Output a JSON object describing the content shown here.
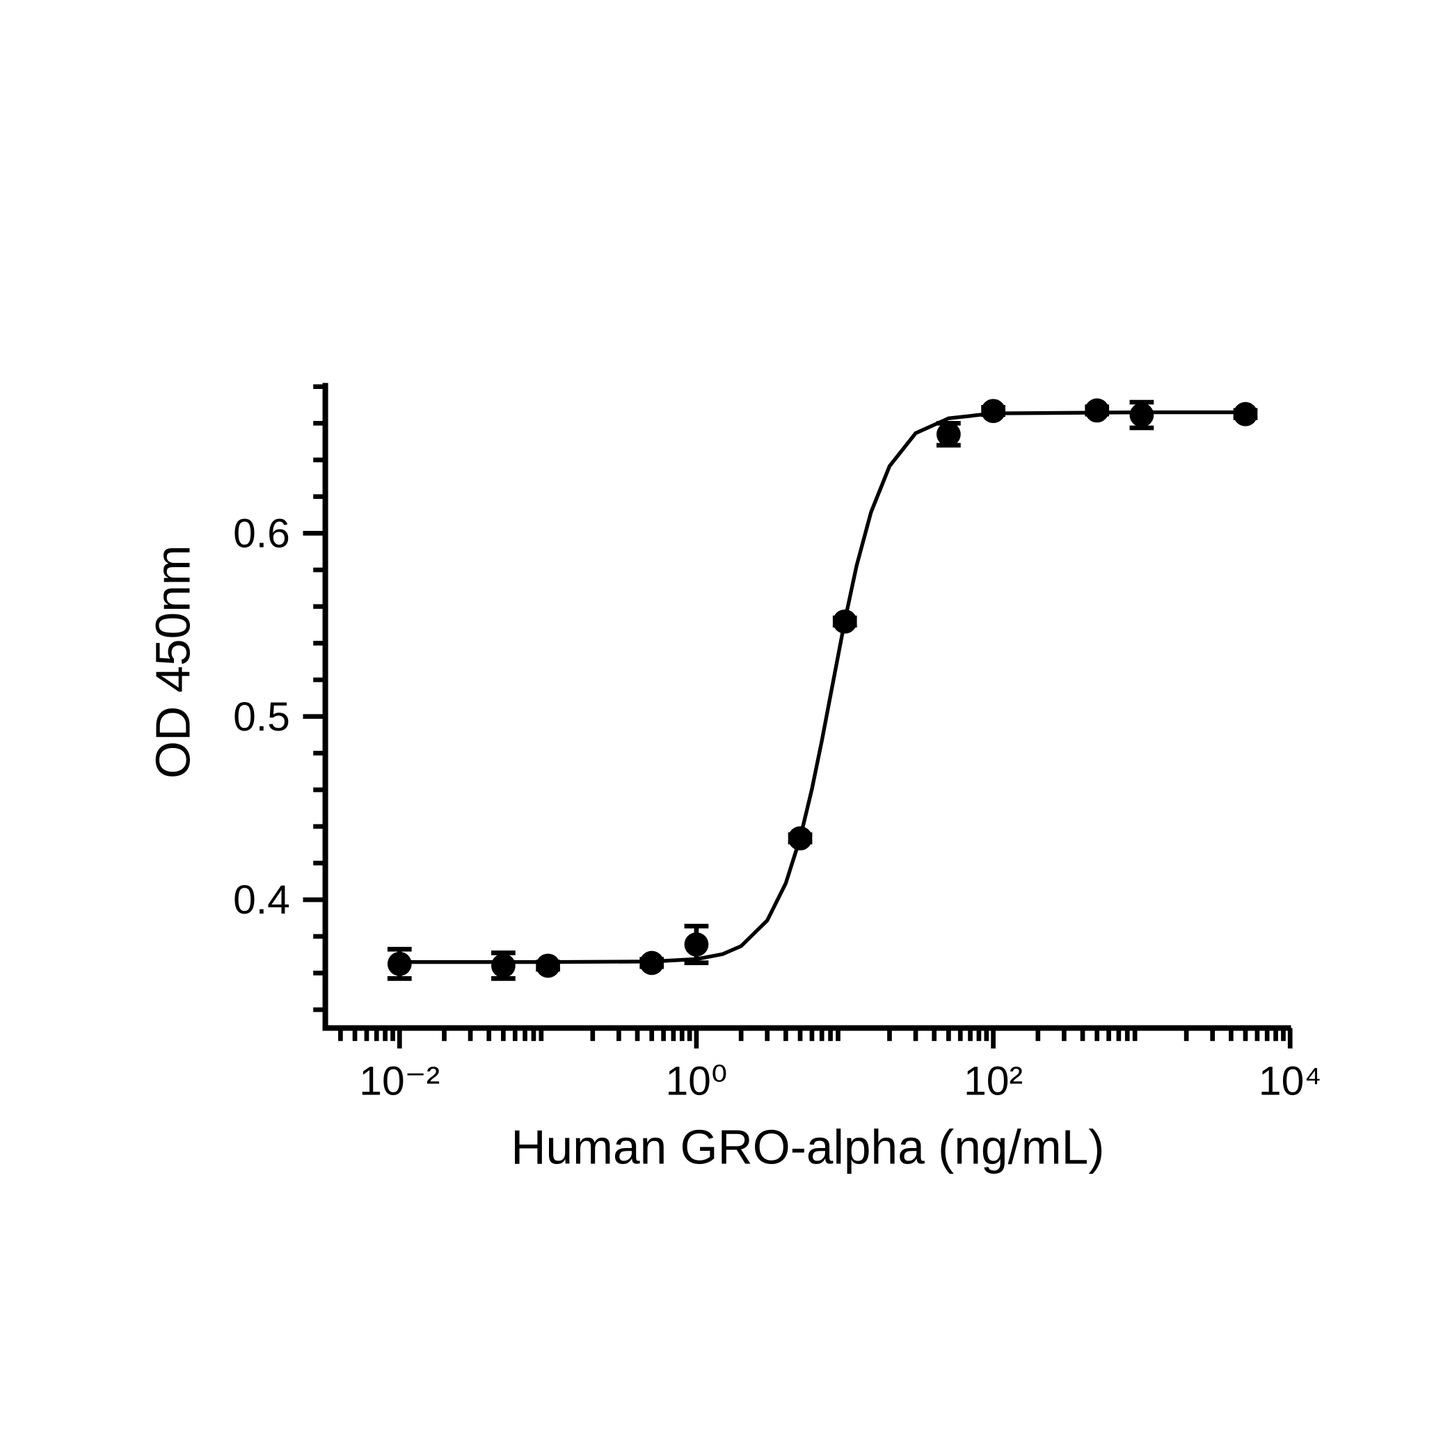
{
  "chart_data": {
    "type": "scatter",
    "x_label": "Human GRO-alpha (ng/mL)",
    "y_label": "OD 450nm",
    "x_log": true,
    "xlim": [
      0.0033,
      10000
    ],
    "ylim": [
      0.33,
      0.682
    ],
    "xticks": [
      {
        "value": 0.01,
        "label": "10⁻²"
      },
      {
        "value": 1,
        "label": "10⁰"
      },
      {
        "value": 100,
        "label": "10²"
      },
      {
        "value": 10000,
        "label": "10⁴"
      }
    ],
    "yticks": [
      0.4,
      0.5,
      0.6
    ],
    "y_minor_ticks": [
      0.34,
      0.36,
      0.38,
      0.42,
      0.44,
      0.46,
      0.48,
      0.52,
      0.54,
      0.56,
      0.58,
      0.62,
      0.64,
      0.66,
      0.68
    ],
    "series": [
      {
        "type": "scatter",
        "color": "#000000",
        "x": [
          0.01,
          0.05,
          0.1,
          0.5,
          1,
          5,
          10,
          50,
          100,
          500,
          1000,
          5000
        ],
        "values": [
          0.365,
          0.364,
          0.364,
          0.3655,
          0.3756,
          0.4335,
          0.5518,
          0.654,
          0.6667,
          0.667,
          0.6645,
          0.665
        ],
        "errors": [
          0.008,
          0.007,
          0.002,
          0.002,
          0.01,
          0.002,
          0.002,
          0.006,
          0.002,
          0.002,
          0.007,
          0.002
        ]
      },
      {
        "type": "line",
        "color": "#000000",
        "x": [
          0.01,
          0.1,
          0.5,
          1,
          1.5,
          2,
          3,
          4,
          5,
          6,
          7,
          8,
          10,
          12,
          15,
          20,
          30,
          50,
          100,
          1000,
          5000
        ],
        "values": [
          0.366,
          0.366,
          0.3663,
          0.3676,
          0.3703,
          0.3747,
          0.3887,
          0.409,
          0.4337,
          0.4604,
          0.4868,
          0.5114,
          0.5523,
          0.5823,
          0.6114,
          0.6366,
          0.6546,
          0.6627,
          0.6654,
          0.666,
          0.666
        ]
      }
    ]
  }
}
